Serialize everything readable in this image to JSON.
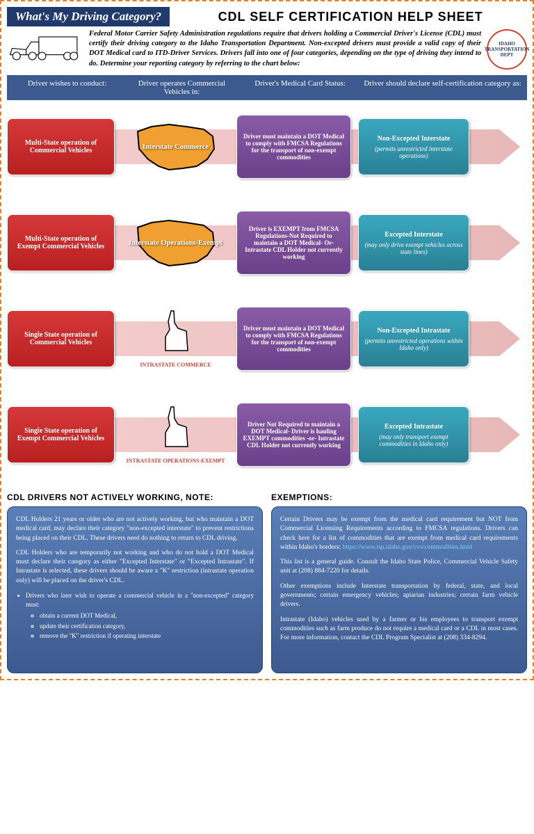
{
  "banner": "What's My Driving Category?",
  "title": "CDL SELF CERTIFICATION  HELP SHEET",
  "intro": "Federal Motor Carrier Safety Administration regulations require that drivers holding a Commercial Driver's License (CDL) must certify their driving category to the Idaho Transportation Department.  Non-excepted drivers must provide a valid copy of their DOT Medical card to ITD-Driver Services.  Drivers fall into one of four categories, depending on the type of driving they intend to do.  Determine your reporting category by referring to the chart below:",
  "cols": {
    "c1": "Driver wishes to conduct:",
    "c2": "Driver operates Commercial Vehicles in:",
    "c3": "Driver's Medical Card Status:",
    "c4": "Driver should declare self-certification category as:"
  },
  "rows": [
    {
      "red": "Multi-State operation of Commercial Vehicles",
      "mapType": "usa",
      "mapLabel": "Interstate Commerce",
      "purple": "Driver must maintain a DOT Medical to comply with FMCSA Regulations for the transport of non-exempt commodities",
      "cyan": "Non-Excepted Interstate",
      "cyanSub": "(permits unrestricted interstate operations)"
    },
    {
      "red": "Multi-State operation of Exempt Commercial Vehicles",
      "mapType": "usa",
      "mapLabel": "Interstate Operations-Exempt",
      "purple": "Driver is EXEMPT from FMCSA Regulations-Not Required to maintain a DOT Medical- Or- Intrastate CDL Holder not currently working",
      "cyan": "Excepted Interstate",
      "cyanSub": "(may only drive exempt vehicles across state lines)"
    },
    {
      "red": "Single State operation of Commercial Vehicles",
      "mapType": "idaho",
      "mapLabel": "INTRASTATE COMMERCE",
      "purple": "Driver must maintain a DOT Medical to comply with FMCSA Regulations for the transport of non-exempt commodities",
      "cyan": "Non-Excepted Intrastate",
      "cyanSub": "(permits unrestricted operations within Idaho only)"
    },
    {
      "red": "Single State operation of Exempt Commercial Vehicles",
      "mapType": "idaho",
      "mapLabel": "INTRASTATE OPERATIONS-EXEMPT",
      "purple": "Driver Not Required to maintain a DOT Medical- Driver is hauling EXEMPT commodities -or- Intrastate CDL Holder not currently working",
      "cyan": "Excepted Intrastate",
      "cyanSub": "(may only transport exempt commodities in Idaho only)"
    }
  ],
  "note": {
    "title": "CDL DRIVERS NOT ACTIVELY WORKING, NOTE:",
    "p1": "CDL Holders 21 years or older who are not actively working, but  who maintain a DOT medical card, may declare their category \"non-excepted interstate\" to prevent restrictions being placed on their CDL. These drivers need do nothing to return to CDL driving.",
    "p2": "CDL Holders who are temporarily not  working  and who do not  hold a DOT Medical must declare their category as either \"Excepted Interstate\" or \"Excepted Intrastate\".  If Intrastate is selected, these drivers should be aware a \"K\" restriction (intrastate operation only) will be placed on the driver's CDL.",
    "bullet": "Drivers who later wish to  operate a  commercial  vehicle  in a \"non-excepted\" category must:",
    "sub1": "obtain  a current  DOT  Medical,",
    "sub2": "update their  certification category,",
    "sub3": "remove the \"K\" restriction if operating interstate"
  },
  "exempt": {
    "title": "EXEMPTIONS:",
    "p1": "Certain Drivers may be exempt from the medical card requirement but NOT from Commercial Licensing Requirements according to FMCSA regulations. Drivers can check here for a list of commodities that are exempt from medical card requirements within Idaho's borders:",
    "link": "https://www.isp.idaho.gov/cvs/commodities.html",
    "p2": "This list is a general guide.  Consult the Idaho State Police, Commercial Vehicle Safety unit at (208) 884-7220 for details.",
    "p3": "Other exemptions include Interstate transportation by federal, state, and local governments;  certain emergency vehicles;  apiarian industries;  certain farm vehicle drivers.",
    "p4": "Intrastate (Idaho) vehicles used by a farmer or his employees to transport exempt commodities such as farm produce do not require a medical card or a CDL in most cases.   For more information, contact the CDL Program Specialist at (208) 334-8294."
  },
  "colors": {
    "red": "#c42828",
    "purple": "#7a4d98",
    "cyan": "#2f95aa",
    "navy": "#3d5a8f",
    "orange_map": "#f0a030"
  }
}
